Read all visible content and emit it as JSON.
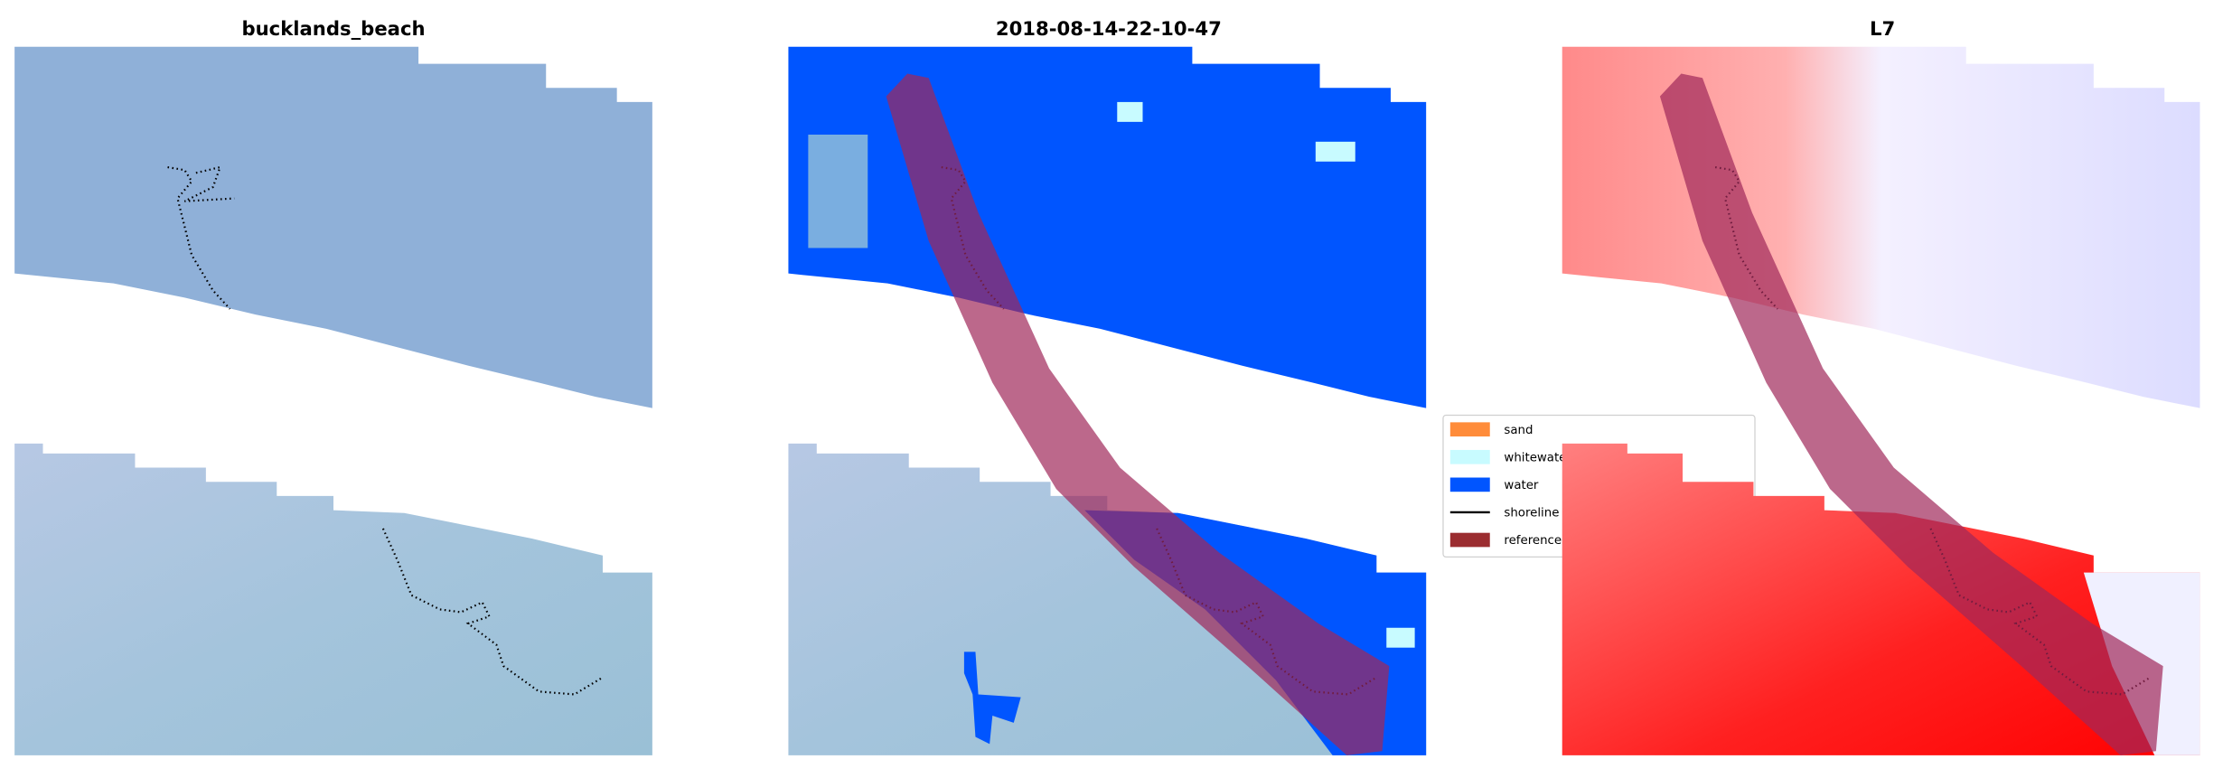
{
  "panels": [
    {
      "title": "bucklands_beach"
    },
    {
      "title": "2018-08-14-22-10-47"
    },
    {
      "title": "L7"
    }
  ],
  "legend": {
    "items": [
      {
        "label": "sand",
        "color": "#ff8c3a",
        "kind": "patch"
      },
      {
        "label": "whitewater",
        "color": "#c8fbff",
        "kind": "patch"
      },
      {
        "label": "water",
        "color": "#0055ff",
        "kind": "patch"
      },
      {
        "label": "shoreline",
        "color": "#000000",
        "kind": "line"
      },
      {
        "label": "reference shoreline buffer",
        "color": "#9b2d30",
        "kind": "patch"
      }
    ]
  },
  "colors": {
    "rgb_top": "#8fb0d8",
    "rgb_bottom": "#a9c2dc",
    "water": "#0055ff",
    "reference_buffer": "#a0285a",
    "index_positive": "#ff2a2a",
    "index_negative": "#3040e0"
  }
}
